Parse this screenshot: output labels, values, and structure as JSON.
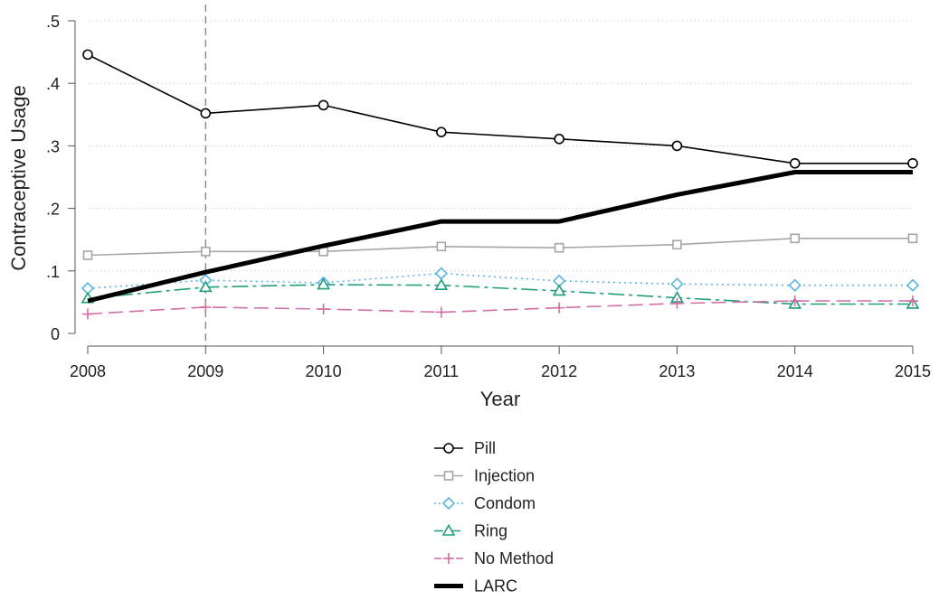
{
  "chart_data": {
    "type": "line",
    "title": "",
    "xlabel": "Year",
    "ylabel": "Contraceptive Usage",
    "x": [
      2008,
      2009,
      2010,
      2011,
      2012,
      2013,
      2014,
      2015
    ],
    "x_tick_labels": [
      "2008",
      "2009",
      "2010",
      "2011",
      "2012",
      "2013",
      "2014",
      "2015"
    ],
    "y_ticks": [
      0,
      0.1,
      0.2,
      0.3,
      0.4,
      0.5
    ],
    "y_tick_labels": [
      "0",
      ".1",
      ".2",
      ".3",
      ".4",
      ".5"
    ],
    "xlim": [
      2008,
      2015
    ],
    "ylim": [
      0,
      0.5
    ],
    "grid": "horizontal dotted",
    "reference_line_x": 2009,
    "legend_position": "bottom",
    "series": [
      {
        "name": "Pill",
        "values": [
          0.446,
          0.352,
          0.365,
          0.322,
          0.311,
          0.3,
          0.272,
          0.272
        ],
        "color": "#000000",
        "marker": "circle",
        "dash": "solid",
        "width": 1.6
      },
      {
        "name": "Injection",
        "values": [
          0.125,
          0.131,
          0.131,
          0.139,
          0.137,
          0.142,
          0.152,
          0.152
        ],
        "color": "#a6a6a6",
        "marker": "square",
        "dash": "solid",
        "width": 1.6
      },
      {
        "name": "Condom",
        "values": [
          0.072,
          0.085,
          0.081,
          0.096,
          0.084,
          0.079,
          0.077,
          0.077
        ],
        "color": "#5ab4e5",
        "marker": "diamond",
        "dash": "dot",
        "width": 1.6
      },
      {
        "name": "Ring",
        "values": [
          0.056,
          0.074,
          0.078,
          0.077,
          0.068,
          0.057,
          0.047,
          0.047
        ],
        "color": "#1f9e7a",
        "marker": "triangle",
        "dash": "longdashdot",
        "width": 1.6
      },
      {
        "name": "No Method",
        "values": [
          0.031,
          0.042,
          0.039,
          0.034,
          0.041,
          0.048,
          0.052,
          0.052
        ],
        "color": "#d16fa6",
        "marker": "plus",
        "dash": "longdash",
        "width": 1.6
      },
      {
        "name": "LARC",
        "values": [
          0.052,
          0.098,
          0.14,
          0.179,
          0.179,
          0.222,
          0.258,
          0.258
        ],
        "color": "#000000",
        "marker": "none",
        "dash": "solid",
        "width": 5
      }
    ]
  }
}
